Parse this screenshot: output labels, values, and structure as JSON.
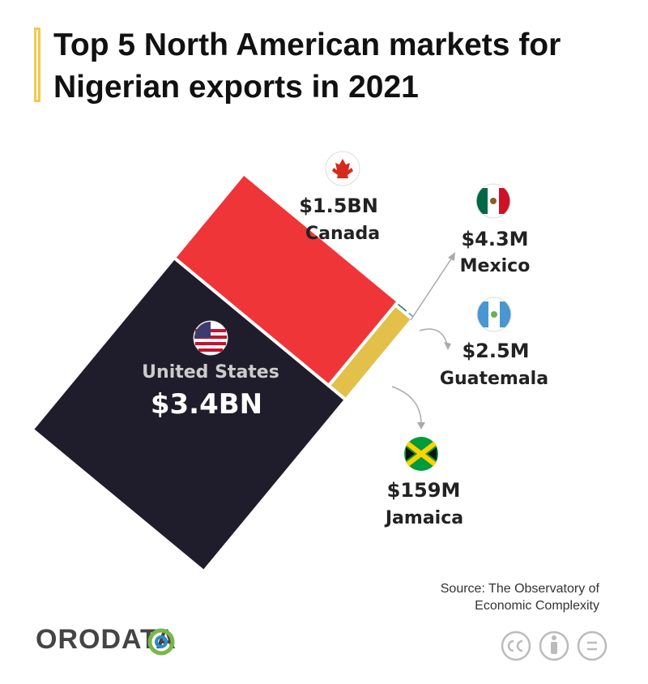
{
  "chart_data": {
    "type": "treemap",
    "title": "Top 5 North American markets for Nigerian exports in 2021",
    "categories": [
      "United States",
      "Canada",
      "Jamaica",
      "Mexico",
      "Guatemala"
    ],
    "values": [
      3400000000,
      1500000000,
      159000000,
      4300000,
      2500000
    ],
    "value_labels": [
      "$3.4BN",
      "$1.5BN",
      "$159M",
      "$4.3M",
      "$2.5M"
    ],
    "colors": [
      "#1f1d2b",
      "#f03538",
      "#e3c04a",
      "#1f7a55",
      "#4a8fd0"
    ],
    "source": "Source: The Observatory of Economic Complexity"
  },
  "brand": "ORODATA"
}
